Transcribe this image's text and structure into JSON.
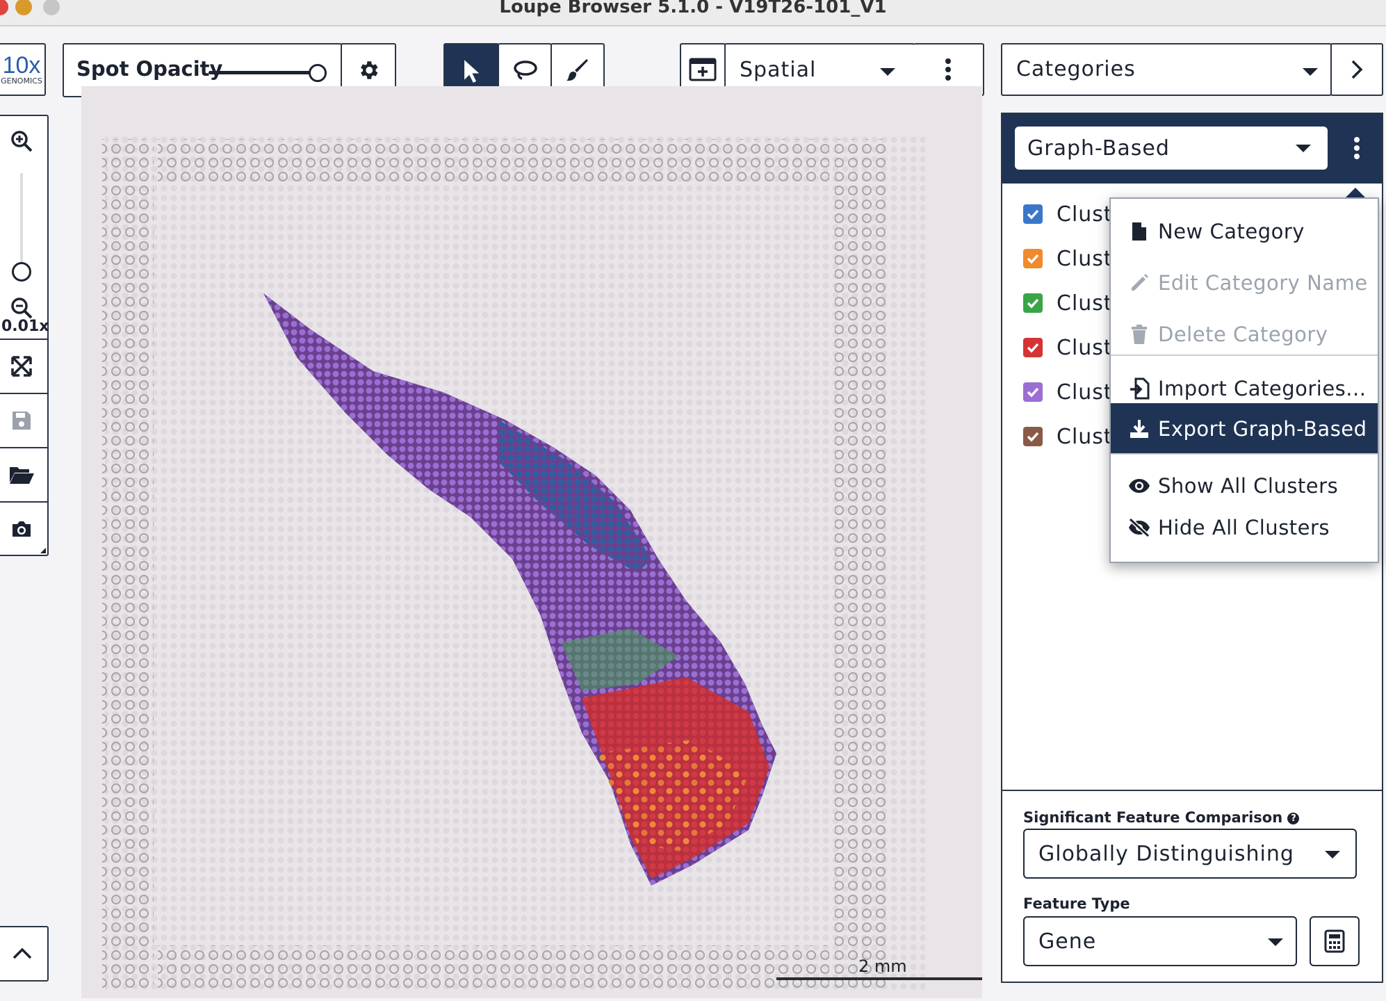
{
  "window": {
    "title": "Loupe Browser 5.1.0 - V19T26-101_V1"
  },
  "logo": {
    "line1": "10x",
    "line2": "GENOMICS"
  },
  "toolbar": {
    "spot_opacity_label": "Spot Opacity",
    "spot_opacity_value": 1.0,
    "view_label": "Spatial",
    "panel_select_label": "Categories"
  },
  "left_toolbar": {
    "zoom_level": "0.01x"
  },
  "canvas": {
    "scale_bar_label": "2 mm"
  },
  "right_panel": {
    "category_select": "Graph-Based",
    "clusters": [
      {
        "label": "Clust",
        "color": "#3a77c8"
      },
      {
        "label": "Clust",
        "color": "#f08a2d"
      },
      {
        "label": "Clust",
        "color": "#3aa548"
      },
      {
        "label": "Clust",
        "color": "#d43434"
      },
      {
        "label": "Clust",
        "color": "#9a6ed2"
      },
      {
        "label": "Clust",
        "color": "#8a5a48"
      }
    ],
    "significant_feature_label": "Significant Feature Comparison",
    "significant_feature_value": "Globally Distinguishing",
    "feature_type_label": "Feature Type",
    "feature_type_value": "Gene"
  },
  "menu": {
    "items": [
      {
        "label": "New Category",
        "icon": "file-icon",
        "enabled": true
      },
      {
        "label": "Edit Category Name",
        "icon": "pencil-icon",
        "enabled": false
      },
      {
        "label": "Delete Category",
        "icon": "trash-icon",
        "enabled": false
      },
      {
        "label": "Import Categories...",
        "icon": "import-icon",
        "enabled": true
      },
      {
        "label": "Export Graph-Based",
        "icon": "download-icon",
        "enabled": true,
        "highlighted": true
      },
      {
        "label": "Show All Clusters",
        "icon": "eye-icon",
        "enabled": true
      },
      {
        "label": "Hide All Clusters",
        "icon": "eye-slash-icon",
        "enabled": true
      }
    ]
  },
  "colors": {
    "navy": "#1f3354",
    "border": "#2a3547",
    "highlight": "#1f3354"
  }
}
